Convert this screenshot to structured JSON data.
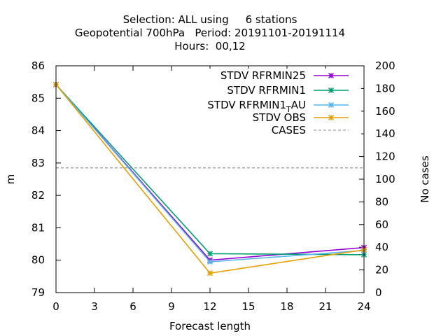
{
  "chart_data": {
    "type": "line",
    "title_lines": [
      "Selection: ALL using     6 stations",
      "Geopotential 700hPa   Period: 20191101-20191114",
      "Hours:  00,12"
    ],
    "xlabel": "Forecast length",
    "ylabel": "m",
    "y2label": "No cases",
    "x_ticks": [
      0,
      3,
      6,
      9,
      12,
      15,
      18,
      21,
      24
    ],
    "xlim": [
      0,
      24
    ],
    "y_ticks": [
      79,
      80,
      81,
      82,
      83,
      84,
      85,
      86
    ],
    "ylim": [
      79,
      86
    ],
    "y2_ticks": [
      0,
      20,
      40,
      60,
      80,
      100,
      120,
      140,
      160,
      180,
      200
    ],
    "y2lim": [
      0,
      200
    ],
    "legend_position": "top-right",
    "grid": false,
    "series": [
      {
        "name": "STDV RFRMIN25",
        "color": "#9400d3",
        "marker": "x",
        "axis": "y",
        "x": [
          0,
          12,
          24
        ],
        "values": [
          85.42,
          80.0,
          80.39
        ]
      },
      {
        "name": "STDV RFRMIN1",
        "color": "#009e73",
        "marker": "x",
        "axis": "y",
        "x": [
          0,
          12,
          24
        ],
        "values": [
          85.42,
          80.2,
          80.17
        ]
      },
      {
        "name": "STDV RFRMIN1_TAU",
        "legend_label": {
          "before": "STDV RFRMIN1",
          "sub": "T",
          "after": "AU"
        },
        "color": "#56b4e9",
        "marker": "x",
        "axis": "y",
        "x": [
          0,
          12,
          24
        ],
        "values": [
          85.42,
          79.95,
          80.3
        ]
      },
      {
        "name": "STDV OBS",
        "color": "#e69f00",
        "marker": "x",
        "axis": "y",
        "x": [
          0,
          12,
          24
        ],
        "values": [
          85.42,
          79.6,
          80.32
        ]
      },
      {
        "name": "CASES",
        "color": "#a0a0a0",
        "marker": "none",
        "dash": true,
        "axis": "y2",
        "x": [
          0,
          12,
          24
        ],
        "values": [
          110,
          110,
          110
        ]
      }
    ]
  }
}
